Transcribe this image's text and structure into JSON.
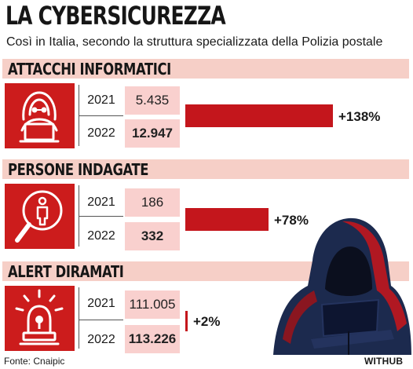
{
  "title": "LA CYBERSICUREZZA",
  "subtitle": "Così in Italia, secondo la struttura specializzata della Polizia postale",
  "colors": {
    "accent": "#c4161c",
    "icon_bg": "#cc1c1c",
    "header_bg": "#f6cfc7",
    "value_bg": "#f9d0ce"
  },
  "sections": [
    {
      "title": "ATTACCHI INFORMATICI",
      "icon": "hacker-laptop-icon",
      "year_a": "2021",
      "value_a": "5.435",
      "year_b": "2022",
      "value_b": "12.947",
      "change": "+138%"
    },
    {
      "title": "PERSONE INDAGATE",
      "icon": "magnifier-person-icon",
      "year_a": "2021",
      "value_a": "186",
      "year_b": "2022",
      "value_b": "332",
      "change": "+78%"
    },
    {
      "title": "ALERT DIRAMATI",
      "icon": "alarm-siren-icon",
      "year_a": "2021",
      "value_a": "111.005",
      "year_b": "2022",
      "value_b": "113.226",
      "change": "+2%"
    }
  ],
  "footer": {
    "source": "Fonte: Cnaipic",
    "brand": "WITHUB"
  },
  "chart_data": {
    "type": "bar",
    "title": "LA CYBERSICUREZZA",
    "subtitle": "Così in Italia, secondo la struttura specializzata della Polizia postale",
    "categories": [
      "ATTACCHI INFORMATICI",
      "PERSONE INDAGATE",
      "ALERT DIRAMATI"
    ],
    "series": [
      {
        "name": "2021",
        "values": [
          5435,
          186,
          111005
        ]
      },
      {
        "name": "2022",
        "values": [
          12947,
          332,
          113226
        ]
      }
    ],
    "change_percent": [
      138,
      78,
      2
    ],
    "change_labels": [
      "+138%",
      "+78%",
      "+2%"
    ]
  }
}
